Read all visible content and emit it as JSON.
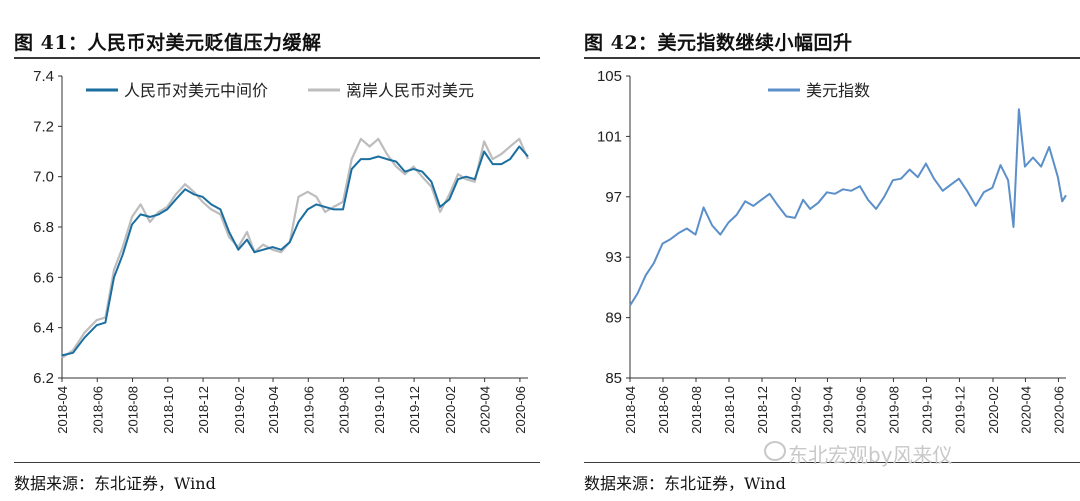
{
  "charts": {
    "left": {
      "title": "图 41：人民币对美元贬值压力缓解",
      "source": "数据来源：东北证券，Wind"
    },
    "right": {
      "title": "图 42：美元指数继续小幅回升",
      "source": "数据来源：东北证券，Wind"
    }
  },
  "watermark": "东北宏观by风来仪",
  "colors": {
    "primary": "#1a6ea0",
    "offshore": "#bdbdbd",
    "usd_index": "#5b8fc9"
  },
  "chart_data": [
    {
      "type": "line",
      "title": "图 41：人民币对美元贬值压力缓解",
      "x_tick_labels": [
        "2018-04",
        "2018-06",
        "2018-08",
        "2018-10",
        "2018-12",
        "2019-02",
        "2019-04",
        "2019-06",
        "2019-08",
        "2019-10",
        "2019-12",
        "2020-02",
        "2020-04",
        "2020-06"
      ],
      "y_tick_labels": [
        "6.2",
        "6.4",
        "6.6",
        "6.8",
        "7.0",
        "7.2",
        "7.4"
      ],
      "ylim": [
        6.2,
        7.4
      ],
      "x_range": [
        "2018-04-01",
        "2020-06-15"
      ],
      "grid": false,
      "legend_position": "top",
      "series": [
        {
          "name": "人民币对美元中间价",
          "color": "#1a6ea0",
          "points": [
            [
              "2018-04-01",
              6.29
            ],
            [
              "2018-04-20",
              6.3
            ],
            [
              "2018-05-10",
              6.36
            ],
            [
              "2018-05-31",
              6.41
            ],
            [
              "2018-06-15",
              6.42
            ],
            [
              "2018-06-30",
              6.6
            ],
            [
              "2018-07-15",
              6.69
            ],
            [
              "2018-07-31",
              6.81
            ],
            [
              "2018-08-15",
              6.85
            ],
            [
              "2018-08-31",
              6.84
            ],
            [
              "2018-09-15",
              6.85
            ],
            [
              "2018-09-30",
              6.87
            ],
            [
              "2018-10-15",
              6.91
            ],
            [
              "2018-10-31",
              6.95
            ],
            [
              "2018-11-15",
              6.93
            ],
            [
              "2018-11-30",
              6.92
            ],
            [
              "2018-12-15",
              6.89
            ],
            [
              "2018-12-31",
              6.87
            ],
            [
              "2019-01-15",
              6.78
            ],
            [
              "2019-01-31",
              6.71
            ],
            [
              "2019-02-15",
              6.75
            ],
            [
              "2019-02-28",
              6.7
            ],
            [
              "2019-03-15",
              6.71
            ],
            [
              "2019-03-31",
              6.72
            ],
            [
              "2019-04-15",
              6.71
            ],
            [
              "2019-04-30",
              6.74
            ],
            [
              "2019-05-15",
              6.82
            ],
            [
              "2019-05-31",
              6.87
            ],
            [
              "2019-06-15",
              6.89
            ],
            [
              "2019-06-30",
              6.88
            ],
            [
              "2019-07-15",
              6.87
            ],
            [
              "2019-07-31",
              6.87
            ],
            [
              "2019-08-15",
              7.03
            ],
            [
              "2019-08-31",
              7.07
            ],
            [
              "2019-09-15",
              7.07
            ],
            [
              "2019-09-30",
              7.08
            ],
            [
              "2019-10-15",
              7.07
            ],
            [
              "2019-10-31",
              7.06
            ],
            [
              "2019-11-15",
              7.02
            ],
            [
              "2019-11-30",
              7.03
            ],
            [
              "2019-12-15",
              7.02
            ],
            [
              "2019-12-31",
              6.98
            ],
            [
              "2020-01-15",
              6.88
            ],
            [
              "2020-01-31",
              6.91
            ],
            [
              "2020-02-15",
              6.99
            ],
            [
              "2020-02-29",
              7.0
            ],
            [
              "2020-03-15",
              6.99
            ],
            [
              "2020-03-31",
              7.1
            ],
            [
              "2020-04-15",
              7.05
            ],
            [
              "2020-04-30",
              7.05
            ],
            [
              "2020-05-15",
              7.07
            ],
            [
              "2020-05-31",
              7.12
            ],
            [
              "2020-06-15",
              7.08
            ]
          ]
        },
        {
          "name": "离岸人民币对美元",
          "color": "#bdbdbd",
          "points": [
            [
              "2018-04-01",
              6.28
            ],
            [
              "2018-04-20",
              6.31
            ],
            [
              "2018-05-10",
              6.38
            ],
            [
              "2018-05-31",
              6.43
            ],
            [
              "2018-06-15",
              6.44
            ],
            [
              "2018-06-30",
              6.63
            ],
            [
              "2018-07-15",
              6.72
            ],
            [
              "2018-07-31",
              6.84
            ],
            [
              "2018-08-15",
              6.89
            ],
            [
              "2018-08-31",
              6.82
            ],
            [
              "2018-09-15",
              6.86
            ],
            [
              "2018-09-30",
              6.88
            ],
            [
              "2018-10-15",
              6.93
            ],
            [
              "2018-10-31",
              6.97
            ],
            [
              "2018-11-15",
              6.94
            ],
            [
              "2018-11-30",
              6.9
            ],
            [
              "2018-12-15",
              6.87
            ],
            [
              "2018-12-31",
              6.85
            ],
            [
              "2019-01-15",
              6.76
            ],
            [
              "2019-01-31",
              6.72
            ],
            [
              "2019-02-15",
              6.78
            ],
            [
              "2019-02-28",
              6.7
            ],
            [
              "2019-03-15",
              6.73
            ],
            [
              "2019-03-31",
              6.71
            ],
            [
              "2019-04-15",
              6.7
            ],
            [
              "2019-04-30",
              6.74
            ],
            [
              "2019-05-15",
              6.92
            ],
            [
              "2019-05-31",
              6.94
            ],
            [
              "2019-06-15",
              6.92
            ],
            [
              "2019-06-30",
              6.86
            ],
            [
              "2019-07-15",
              6.88
            ],
            [
              "2019-07-31",
              6.9
            ],
            [
              "2019-08-15",
              7.07
            ],
            [
              "2019-08-31",
              7.15
            ],
            [
              "2019-09-15",
              7.12
            ],
            [
              "2019-09-30",
              7.15
            ],
            [
              "2019-10-15",
              7.09
            ],
            [
              "2019-10-31",
              7.04
            ],
            [
              "2019-11-15",
              7.01
            ],
            [
              "2019-11-30",
              7.04
            ],
            [
              "2019-12-15",
              7.0
            ],
            [
              "2019-12-31",
              6.96
            ],
            [
              "2020-01-15",
              6.86
            ],
            [
              "2020-01-31",
              6.93
            ],
            [
              "2020-02-15",
              7.01
            ],
            [
              "2020-02-29",
              6.99
            ],
            [
              "2020-03-15",
              6.98
            ],
            [
              "2020-03-31",
              7.14
            ],
            [
              "2020-04-15",
              7.07
            ],
            [
              "2020-04-30",
              7.09
            ],
            [
              "2020-05-15",
              7.12
            ],
            [
              "2020-05-31",
              7.15
            ],
            [
              "2020-06-15",
              7.07
            ]
          ]
        }
      ]
    },
    {
      "type": "line",
      "title": "图 42：美元指数继续小幅回升",
      "x_tick_labels": [
        "2018-04",
        "2018-06",
        "2018-08",
        "2018-10",
        "2018-12",
        "2019-02",
        "2019-04",
        "2019-06",
        "2019-08",
        "2019-10",
        "2019-12",
        "2020-02",
        "2020-04",
        "2020-06"
      ],
      "y_tick_labels": [
        "85",
        "89",
        "93",
        "97",
        "101",
        "105"
      ],
      "ylim": [
        85,
        105
      ],
      "x_range": [
        "2018-04-01",
        "2020-06-15"
      ],
      "grid": false,
      "legend_position": "top-left",
      "series": [
        {
          "name": "美元指数",
          "color": "#5b8fc9",
          "points": [
            [
              "2018-04-01",
              89.8
            ],
            [
              "2018-04-15",
              90.6
            ],
            [
              "2018-04-30",
              91.8
            ],
            [
              "2018-05-15",
              92.6
            ],
            [
              "2018-05-31",
              93.9
            ],
            [
              "2018-06-15",
              94.2
            ],
            [
              "2018-06-30",
              94.6
            ],
            [
              "2018-07-15",
              94.9
            ],
            [
              "2018-07-31",
              94.5
            ],
            [
              "2018-08-15",
              96.3
            ],
            [
              "2018-08-31",
              95.1
            ],
            [
              "2018-09-15",
              94.5
            ],
            [
              "2018-09-30",
              95.3
            ],
            [
              "2018-10-15",
              95.8
            ],
            [
              "2018-10-31",
              96.7
            ],
            [
              "2018-11-15",
              96.4
            ],
            [
              "2018-11-30",
              96.8
            ],
            [
              "2018-12-15",
              97.2
            ],
            [
              "2018-12-31",
              96.4
            ],
            [
              "2019-01-15",
              95.7
            ],
            [
              "2019-01-31",
              95.6
            ],
            [
              "2019-02-15",
              96.8
            ],
            [
              "2019-02-28",
              96.2
            ],
            [
              "2019-03-15",
              96.6
            ],
            [
              "2019-03-31",
              97.3
            ],
            [
              "2019-04-15",
              97.2
            ],
            [
              "2019-04-30",
              97.5
            ],
            [
              "2019-05-15",
              97.4
            ],
            [
              "2019-05-31",
              97.7
            ],
            [
              "2019-06-15",
              96.8
            ],
            [
              "2019-06-30",
              96.2
            ],
            [
              "2019-07-15",
              97.0
            ],
            [
              "2019-07-31",
              98.1
            ],
            [
              "2019-08-15",
              98.2
            ],
            [
              "2019-08-31",
              98.8
            ],
            [
              "2019-09-15",
              98.3
            ],
            [
              "2019-09-30",
              99.2
            ],
            [
              "2019-10-15",
              98.2
            ],
            [
              "2019-10-31",
              97.4
            ],
            [
              "2019-11-15",
              97.8
            ],
            [
              "2019-11-30",
              98.2
            ],
            [
              "2019-12-15",
              97.4
            ],
            [
              "2019-12-31",
              96.4
            ],
            [
              "2020-01-15",
              97.3
            ],
            [
              "2020-01-31",
              97.6
            ],
            [
              "2020-02-15",
              99.1
            ],
            [
              "2020-02-29",
              98.1
            ],
            [
              "2020-03-10",
              95.0
            ],
            [
              "2020-03-20",
              102.8
            ],
            [
              "2020-03-31",
              99.0
            ],
            [
              "2020-04-15",
              99.6
            ],
            [
              "2020-04-30",
              99.0
            ],
            [
              "2020-05-15",
              100.3
            ],
            [
              "2020-05-31",
              98.3
            ],
            [
              "2020-06-08",
              96.7
            ],
            [
              "2020-06-15",
              97.1
            ]
          ]
        }
      ]
    }
  ]
}
